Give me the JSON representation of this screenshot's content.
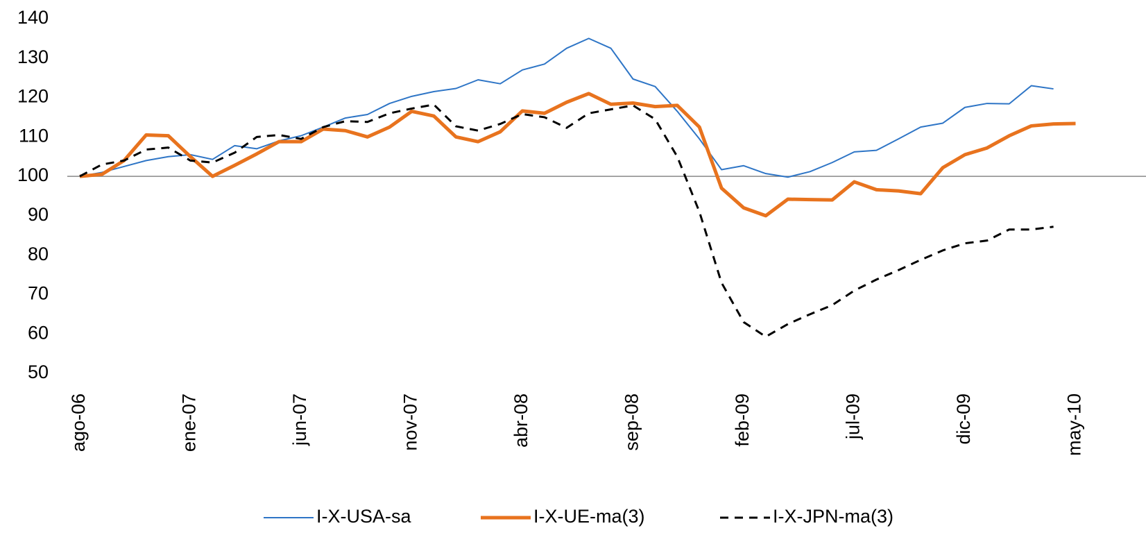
{
  "chart_data": {
    "type": "line",
    "categories": [
      "ago-06",
      null,
      null,
      null,
      null,
      "ene-07",
      null,
      null,
      null,
      null,
      "jun-07",
      null,
      null,
      null,
      null,
      "nov-07",
      null,
      null,
      null,
      null,
      "abr-08",
      null,
      null,
      null,
      null,
      "sep-08",
      null,
      null,
      null,
      null,
      "feb-09",
      null,
      null,
      null,
      null,
      "jul-09",
      null,
      null,
      null,
      null,
      "dic-09",
      null,
      null,
      null,
      null,
      "may-10"
    ],
    "series": [
      {
        "name": "I-X-USA-sa",
        "color": "#2e75c6",
        "width": 2,
        "dash": false,
        "values": [
          100,
          101,
          102.5,
          104,
          105,
          105.5,
          104.3,
          107.8,
          107,
          109,
          110.3,
          112.5,
          114.8,
          115.7,
          118.5,
          120.3,
          121.5,
          122.3,
          124.5,
          123.5,
          127,
          128.5,
          132.5,
          135,
          132.5,
          124.7,
          122.8,
          116.5,
          109.5,
          101.7,
          102.7,
          100.7,
          99.8,
          101.2,
          103.5,
          106.2,
          106.6,
          109.5,
          112.5,
          113.5,
          117.5,
          118.5,
          118.4,
          123,
          122.2,
          null
        ]
      },
      {
        "name": "I-X-UE-ma(3)",
        "color": "#e8731e",
        "width": 5,
        "dash": false,
        "values": [
          100,
          100.5,
          104,
          110.5,
          110.3,
          105,
          100,
          102.8,
          105.7,
          108.8,
          108.8,
          112,
          111.6,
          110,
          112.5,
          116.5,
          115.3,
          110,
          108.8,
          111.3,
          116.6,
          116,
          118.8,
          121,
          118.3,
          118.6,
          117.7,
          118,
          112.5,
          97,
          92,
          90,
          94.2,
          94.1,
          94,
          98.6,
          96.6,
          96.3,
          95.6,
          102.2,
          105.5,
          107.2,
          110.3,
          112.8,
          113.3,
          113.4
        ]
      },
      {
        "name": "I-X-JPN-ma(3)",
        "color": "#000000",
        "width": 3,
        "dash": true,
        "values": [
          100,
          103,
          104,
          106.8,
          107.3,
          104,
          103.5,
          106,
          110,
          110.5,
          109.5,
          112.5,
          114,
          113.8,
          116,
          117.2,
          118.2,
          112.7,
          111.6,
          113.3,
          115.8,
          115,
          112.3,
          116,
          117,
          118,
          114.5,
          105,
          91,
          73,
          63,
          59.3,
          62.5,
          65,
          67.3,
          71,
          73.8,
          76.2,
          78.8,
          81.2,
          83,
          83.7,
          86.5,
          86.5,
          87.2,
          null
        ]
      }
    ],
    "ylim": [
      50,
      140
    ],
    "yticks": [
      50,
      60,
      70,
      80,
      90,
      100,
      110,
      120,
      130,
      140
    ],
    "xaxis_crosses": 100,
    "grid": false,
    "legend": "bottom"
  }
}
